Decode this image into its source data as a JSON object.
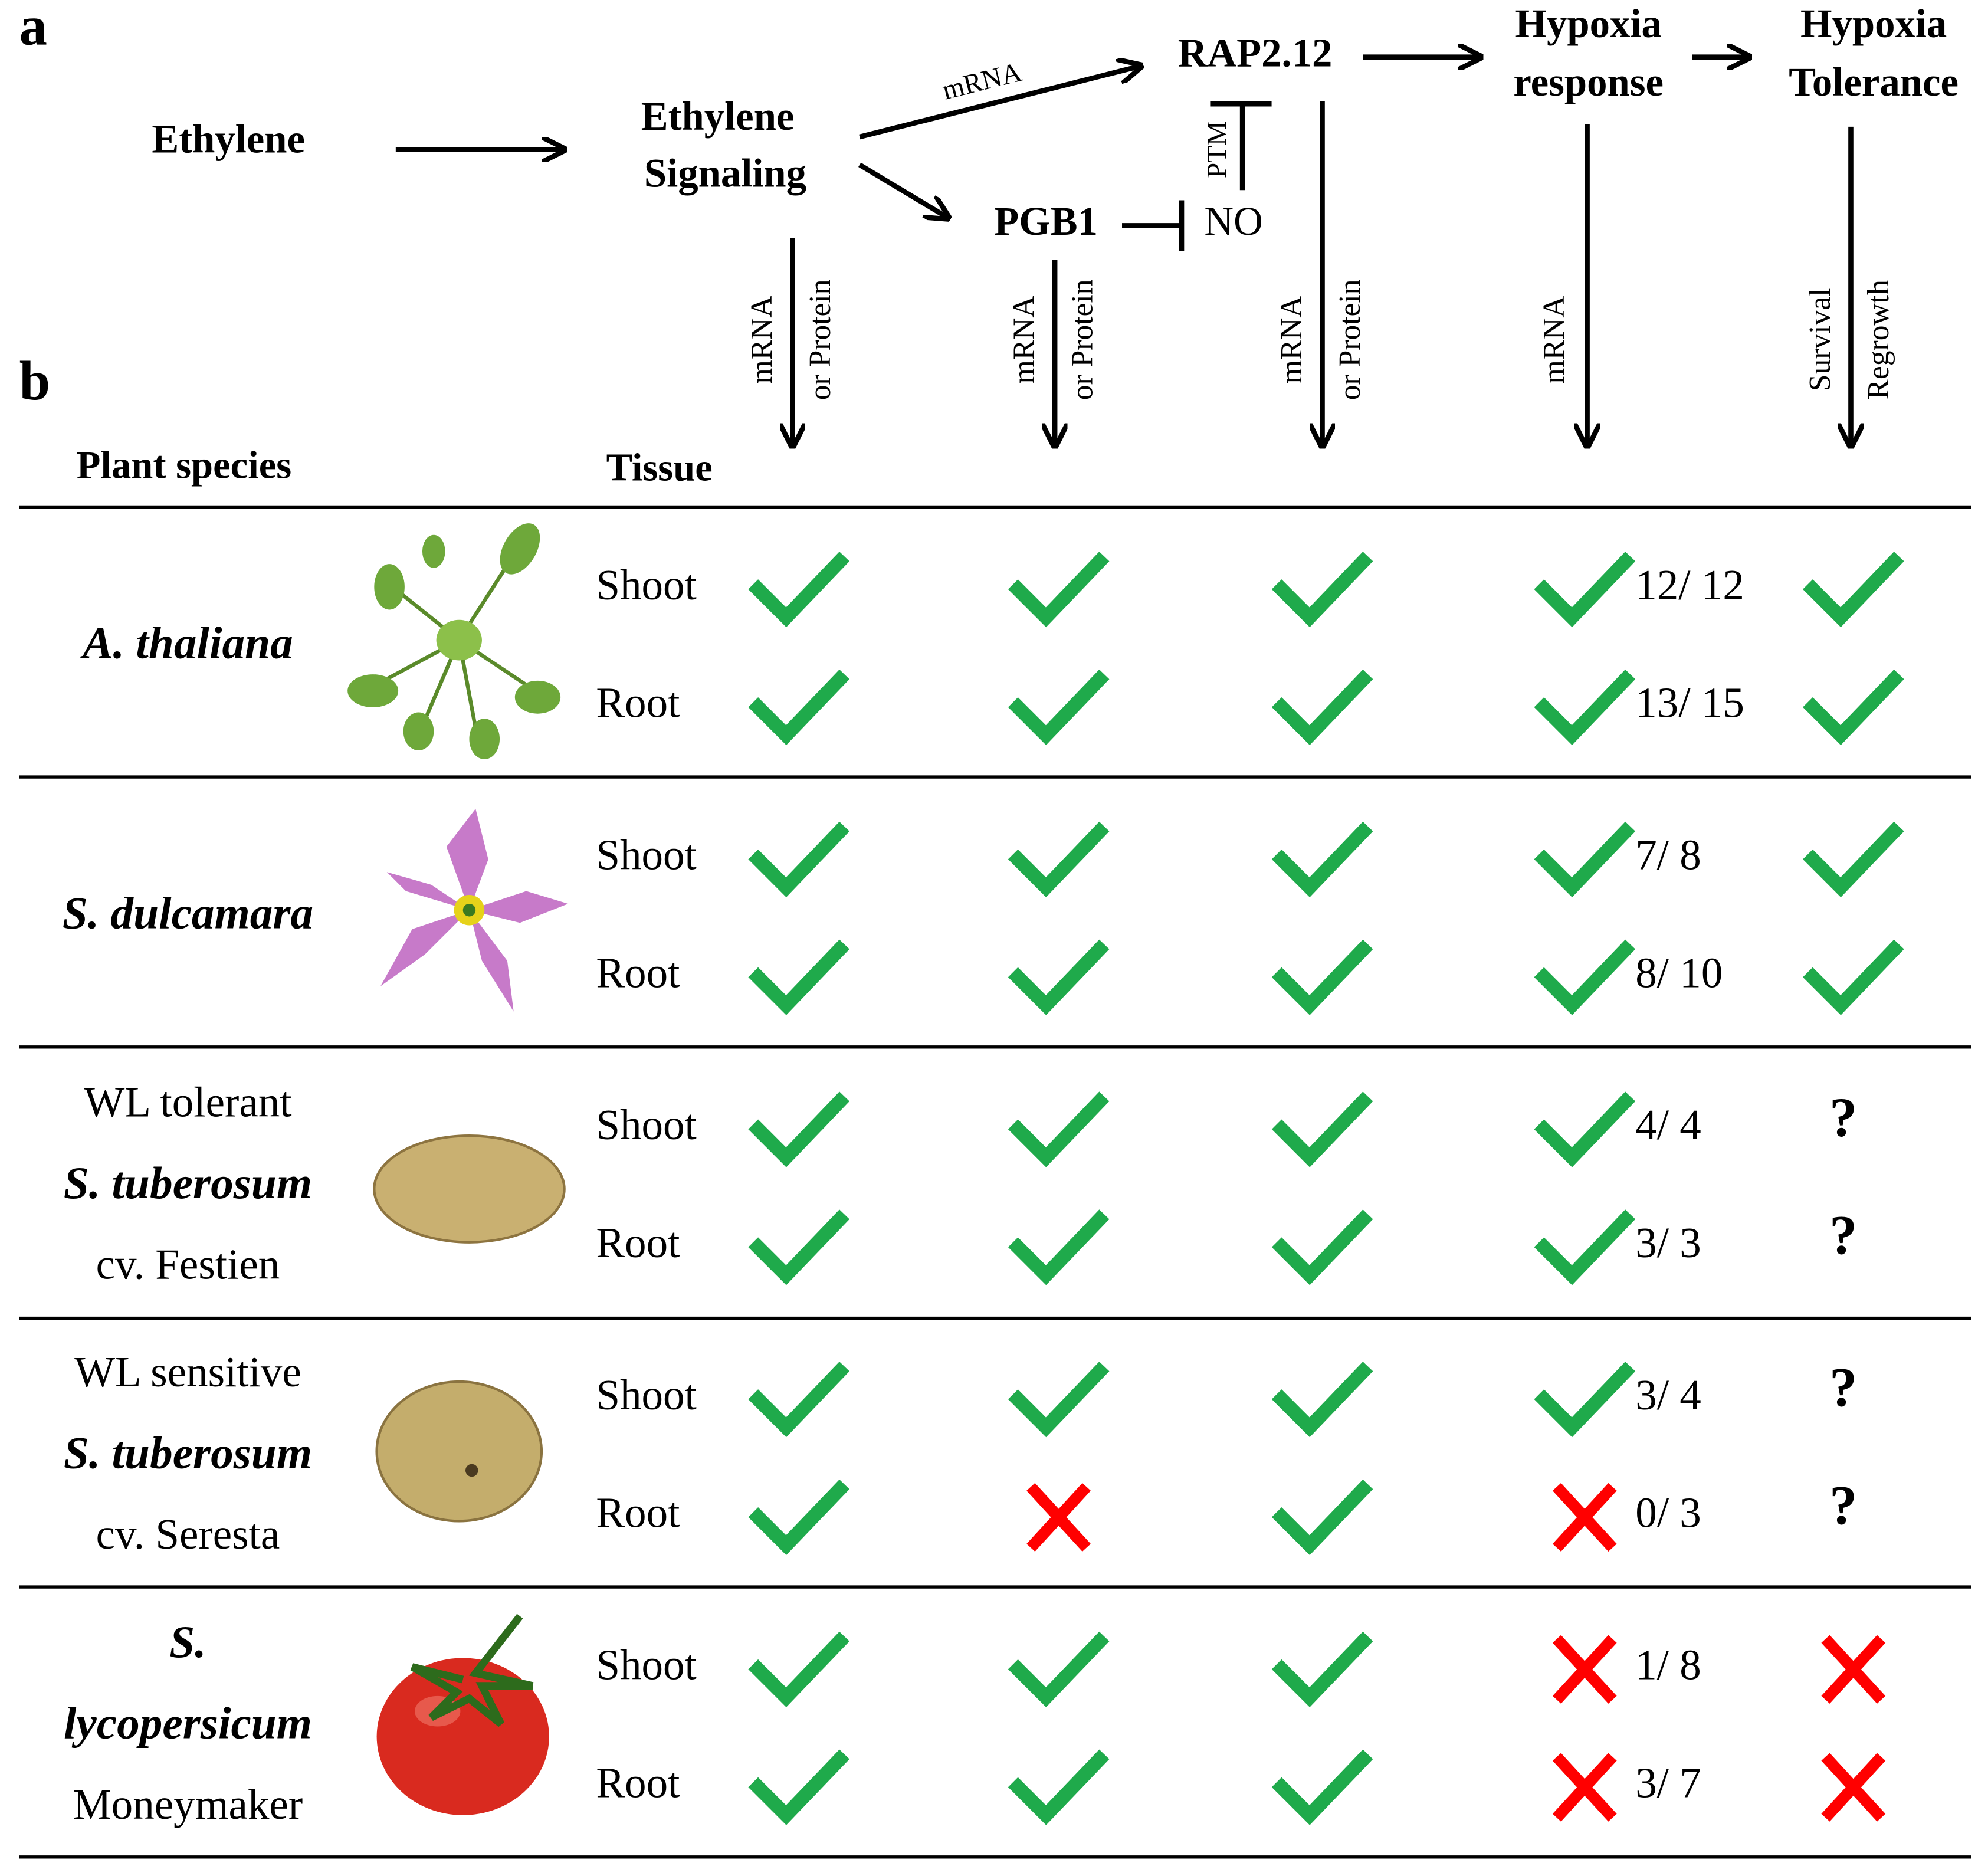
{
  "panel_labels": [
    "a",
    "b"
  ],
  "pathway": {
    "ethylene": "Ethylene",
    "signaling": [
      "Ethylene",
      "Signaling"
    ],
    "rap": "RAP2.12",
    "pgb1": "PGB1",
    "no": "NO",
    "hypoxia_response": [
      "Hypoxia",
      "response"
    ],
    "hypoxia_tolerance": [
      "Hypoxia",
      "Tolerance"
    ],
    "mrna_label": "mRNA",
    "ptm_label": "PTM"
  },
  "readouts": [
    [
      "mRNA",
      "or Protein"
    ],
    [
      "mRNA",
      "or Protein"
    ],
    [
      "mRNA",
      "or Protein"
    ],
    [
      "mRNA"
    ],
    [
      "Survival",
      "Regrowth"
    ]
  ],
  "table": {
    "headers": {
      "species": "Plant species",
      "tissue": "Tissue"
    },
    "groups": [
      {
        "species": {
          "name": [
            "A. thaliana"
          ]
        },
        "rows": [
          {
            "tissue": "Shoot",
            "cells": [
              true,
              true,
              true,
              true,
              true
            ],
            "ratio": "12/ 12"
          },
          {
            "tissue": "Root",
            "cells": [
              true,
              true,
              true,
              true,
              true
            ],
            "ratio": "13/ 15"
          }
        ]
      },
      {
        "species": {
          "name": [
            "S. dulcamara"
          ]
        },
        "rows": [
          {
            "tissue": "Shoot",
            "cells": [
              true,
              true,
              true,
              true,
              true
            ],
            "ratio": "7/ 8"
          },
          {
            "tissue": "Root",
            "cells": [
              true,
              true,
              true,
              true,
              true
            ],
            "ratio": "8/ 10"
          }
        ]
      },
      {
        "species": {
          "note": "WL tolerant",
          "name": [
            "S. tuberosum"
          ],
          "cultivar": "cv. Festien"
        },
        "rows": [
          {
            "tissue": "Shoot",
            "cells": [
              true,
              true,
              true,
              true,
              "?"
            ],
            "ratio": "4/ 4"
          },
          {
            "tissue": "Root",
            "cells": [
              true,
              true,
              true,
              true,
              "?"
            ],
            "ratio": "3/ 3"
          }
        ]
      },
      {
        "species": {
          "note": "WL sensitive",
          "name": [
            "S. tuberosum"
          ],
          "cultivar": "cv. Seresta"
        },
        "rows": [
          {
            "tissue": "Shoot",
            "cells": [
              true,
              true,
              true,
              true,
              "?"
            ],
            "ratio": "3/ 4"
          },
          {
            "tissue": "Root",
            "cells": [
              true,
              false,
              true,
              false,
              "?"
            ],
            "ratio": "0/ 3"
          }
        ]
      },
      {
        "species": {
          "name": [
            "S.",
            "lycopersicum"
          ],
          "cultivar": "Moneymaker"
        },
        "rows": [
          {
            "tissue": "Shoot",
            "cells": [
              true,
              true,
              true,
              false,
              false
            ],
            "ratio": "1/ 8"
          },
          {
            "tissue": "Root",
            "cells": [
              true,
              true,
              true,
              false,
              false
            ],
            "ratio": "3/ 7"
          }
        ]
      }
    ]
  }
}
